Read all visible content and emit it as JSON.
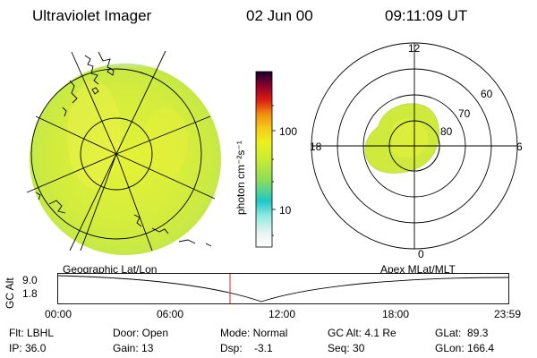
{
  "header": {
    "instrument": "Ultraviolet Imager",
    "date": "02 Jun 00",
    "time": "09:11:09 UT"
  },
  "colorbar": {
    "unit_label": "photon cm⁻²s⁻¹",
    "ticks": [
      "100",
      "10"
    ],
    "scale": "log",
    "colors": [
      "#ffffff",
      "#8ee8e0",
      "#1ec8c8",
      "#c8ec32",
      "#ecf01e",
      "#f6c818",
      "#f08c10",
      "#d81c10",
      "#8c002c",
      "#14002a"
    ]
  },
  "polar_plot": {
    "lat_labels": [
      "80",
      "70",
      "60"
    ],
    "mlt_labels": [
      "12",
      "18",
      "6",
      "0"
    ]
  },
  "labels": {
    "left_panel": "Geographic Lat/Lon",
    "right_panel": "Apex MLat/MLT"
  },
  "timeline": {
    "axis_label": "GC Alt",
    "y_ticks": [
      "9.0",
      "1.8"
    ],
    "x_ticks": [
      "00:00",
      "06:00",
      "12:00",
      "18:00",
      "23:59"
    ]
  },
  "footer": {
    "col1": [
      "Flt: LBHL",
      "IP: 36.0"
    ],
    "col2": [
      "Door: Open",
      "Gain: 13"
    ],
    "col3": [
      "Mode: Normal",
      "Dsp:    -3.1"
    ],
    "col4": [
      "GC Alt: 4.1 Re",
      "Seq: 30"
    ],
    "col5": [
      "GLat:  89.3",
      "GLon: 166.4"
    ]
  },
  "colors": {
    "marker": "#e02020",
    "disk_fill": "#d6ee3a",
    "oval_fill": "#cfea3c"
  }
}
